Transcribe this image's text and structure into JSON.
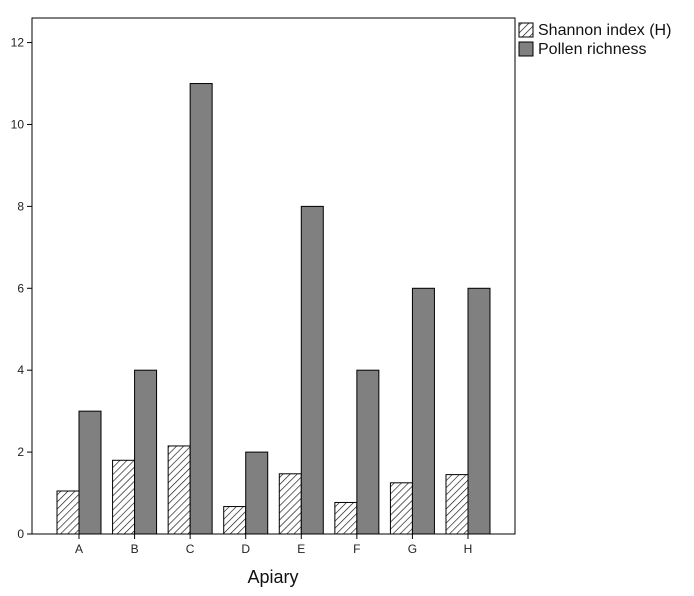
{
  "chart_data": {
    "type": "bar",
    "xlabel": "Apiary",
    "ylabel": "",
    "categories": [
      "A",
      "B",
      "C",
      "D",
      "E",
      "F",
      "G",
      "H"
    ],
    "series": [
      {
        "name": "Shannon index (H)",
        "values": [
          1.05,
          1.8,
          2.15,
          0.67,
          1.47,
          0.77,
          1.25,
          1.45
        ],
        "pattern": "hatched",
        "color": "#ffffff"
      },
      {
        "name": "Pollen richness",
        "values": [
          3,
          4,
          11,
          2,
          8,
          4,
          6,
          6
        ],
        "pattern": "solid",
        "color": "#808080"
      }
    ],
    "ylim": [
      0,
      12.6
    ],
    "yticks": [
      0,
      2,
      4,
      6,
      8,
      10,
      12
    ],
    "grid": false,
    "legend_position": "top-right outside plot"
  }
}
